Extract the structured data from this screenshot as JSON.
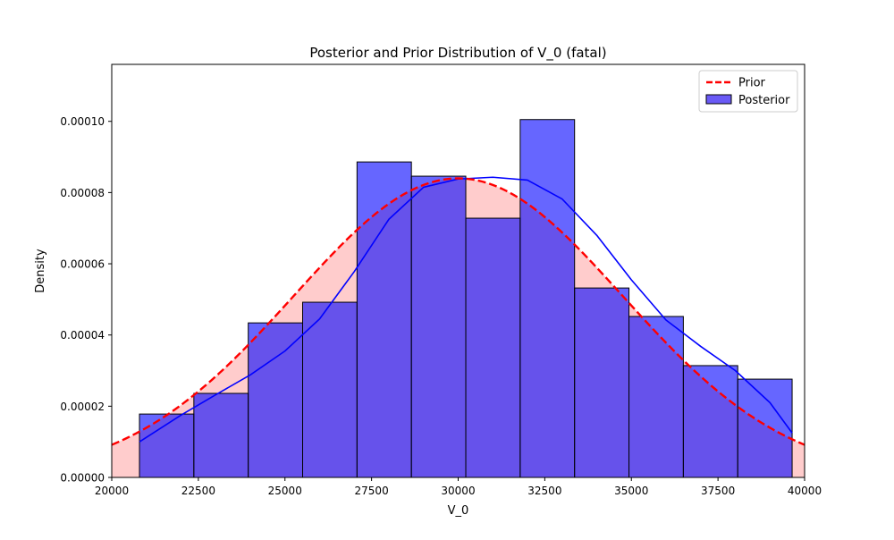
{
  "chart_data": {
    "type": "histogram",
    "title": "Posterior and Prior Distribution of V_0 (fatal)",
    "xlabel": "V_0",
    "ylabel": "Density",
    "xlim": [
      20000,
      40000
    ],
    "ylim": [
      0,
      0.000116
    ],
    "xticks": [
      20000,
      22500,
      25000,
      27500,
      30000,
      32500,
      35000,
      37500,
      40000
    ],
    "xtick_labels": [
      "20000",
      "22500",
      "25000",
      "27500",
      "30000",
      "32500",
      "35000",
      "37500",
      "40000"
    ],
    "yticks": [
      0,
      2e-05,
      4e-05,
      6e-05,
      8e-05,
      0.0001
    ],
    "ytick_labels": [
      "0.00000",
      "0.00002",
      "0.00004",
      "0.00006",
      "0.00008",
      "0.00010"
    ],
    "grid": false,
    "legend_position": "top-right",
    "colors": {
      "prior_line": "#ff0000",
      "prior_fill": "#ffcccc",
      "posterior_bar": "#6a5af6",
      "posterior_bar_overlap": "#8350d3",
      "posterior_kde": "#0000ff",
      "bar_edge": "#000000"
    },
    "series": [
      {
        "name": "Prior",
        "style": "dashed-line-with-fill",
        "curve": {
          "type": "normal",
          "mean": 30000,
          "sd": 4750
        }
      },
      {
        "name": "Posterior",
        "style": "histogram-with-kde",
        "bins": [
          {
            "x0": 20800,
            "x1": 22370,
            "density": 1.78e-05
          },
          {
            "x0": 22370,
            "x1": 23940,
            "density": 2.36e-05
          },
          {
            "x0": 23940,
            "x1": 25510,
            "density": 4.34e-05
          },
          {
            "x0": 25510,
            "x1": 27080,
            "density": 4.92e-05
          },
          {
            "x0": 27080,
            "x1": 28650,
            "density": 8.86e-05
          },
          {
            "x0": 28650,
            "x1": 30220,
            "density": 8.46e-05
          },
          {
            "x0": 30220,
            "x1": 31790,
            "density": 7.28e-05
          },
          {
            "x0": 31790,
            "x1": 33360,
            "density": 0.0001005
          },
          {
            "x0": 33360,
            "x1": 34930,
            "density": 5.32e-05
          },
          {
            "x0": 34930,
            "x1": 36500,
            "density": 4.52e-05
          },
          {
            "x0": 36500,
            "x1": 38070,
            "density": 3.14e-05
          },
          {
            "x0": 38070,
            "x1": 39640,
            "density": 2.76e-05
          }
        ],
        "kde": {
          "x": [
            20800,
            22000,
            23000,
            24000,
            25000,
            26000,
            27000,
            28000,
            29000,
            30000,
            31000,
            32000,
            33000,
            34000,
            35000,
            36000,
            37000,
            38000,
            39000,
            39640
          ],
          "y": [
            1e-05,
            1.75e-05,
            2.32e-05,
            2.88e-05,
            3.55e-05,
            4.45e-05,
            5.78e-05,
            7.25e-05,
            8.15e-05,
            8.38e-05,
            8.43e-05,
            8.35e-05,
            7.82e-05,
            6.8e-05,
            5.55e-05,
            4.42e-05,
            3.68e-05,
            3e-05,
            2.1e-05,
            1.25e-05
          ]
        }
      }
    ]
  }
}
